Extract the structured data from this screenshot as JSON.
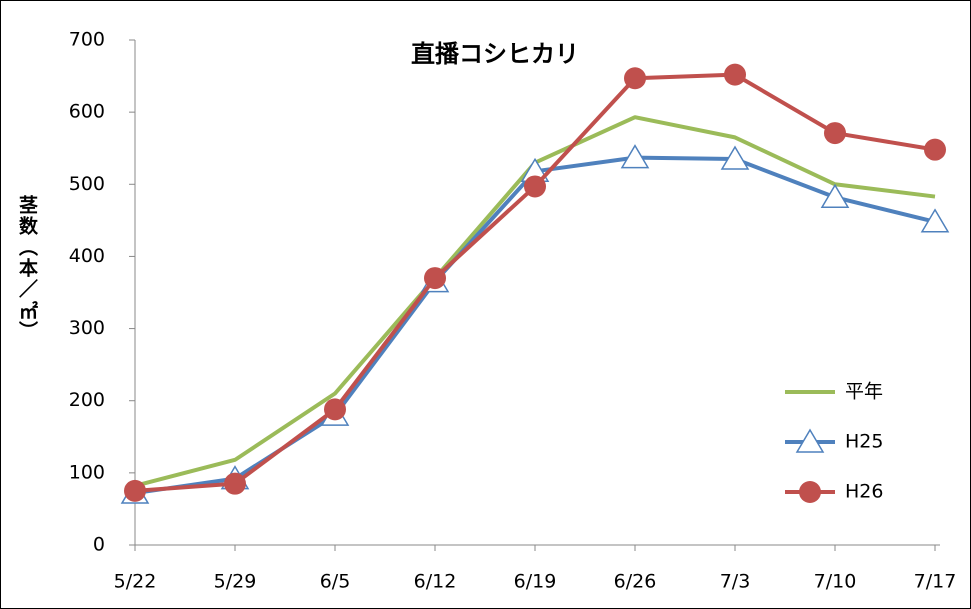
{
  "chart_data": {
    "type": "line",
    "title": "直播コシヒカリ",
    "y_label": "茎数（本／㎡）",
    "categories": [
      "5/22",
      "5/29",
      "6/5",
      "6/12",
      "6/19",
      "6/26",
      "7/3",
      "7/10",
      "7/17"
    ],
    "series": [
      {
        "name": "平年",
        "color": "#9bbb59",
        "marker": "none",
        "values": [
          82,
          118,
          210,
          370,
          530,
          593,
          565,
          500,
          483
        ]
      },
      {
        "name": "H25",
        "color": "#4f81bd",
        "marker": "triangle",
        "values": [
          72,
          92,
          180,
          365,
          518,
          537,
          535,
          482,
          448
        ]
      },
      {
        "name": "H26",
        "color": "#c0504d",
        "marker": "circle",
        "values": [
          75,
          85,
          188,
          370,
          497,
          647,
          652,
          571,
          548
        ]
      }
    ],
    "ylim": [
      0,
      700
    ],
    "yticks": [
      0,
      100,
      200,
      300,
      400,
      500,
      600,
      700
    ],
    "grid": false,
    "legend": "right"
  }
}
